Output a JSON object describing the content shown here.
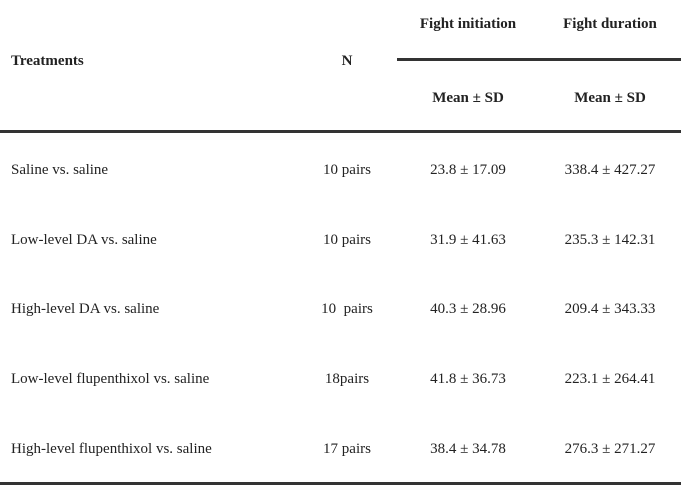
{
  "header": {
    "treatments": "Treatments",
    "n": "N",
    "groups": [
      "Fight initiation",
      "Fight duration"
    ],
    "subheaders": [
      "Mean ± SD",
      "Mean ± SD"
    ]
  },
  "table": {
    "rows": [
      [
        "Saline vs. saline",
        "10 pairs",
        "23.8 ± 17.09",
        "338.4 ± 427.27"
      ],
      [
        "Low-level DA vs. saline",
        "10 pairs",
        "31.9 ± 41.63",
        "235.3 ± 142.31"
      ],
      [
        "High-level DA vs. saline",
        "10  pairs",
        "40.3 ± 28.96",
        "209.4 ± 343.33"
      ],
      [
        "Low-level flupenthixol vs. saline",
        "18pairs",
        "41.8 ± 36.73",
        "223.1 ± 264.41"
      ],
      [
        "High-level flupenthixol vs. saline",
        "17 pairs",
        "38.4 ± 34.78",
        "276.3 ± 271.27"
      ]
    ]
  }
}
